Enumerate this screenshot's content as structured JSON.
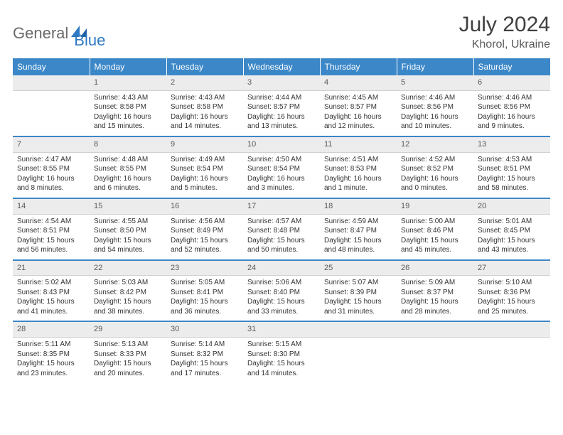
{
  "logo": {
    "part1": "General",
    "part2": "Blue"
  },
  "title": "July 2024",
  "location": "Khorol, Ukraine",
  "colors": {
    "header_bg": "#3b87c8",
    "header_text": "#ffffff",
    "daynum_bg": "#ececec",
    "row_divider": "#3b87c8",
    "body_bg": "#ffffff",
    "text": "#333333",
    "logo_gray": "#6a6a6a",
    "logo_blue": "#2f78c3"
  },
  "day_headers": [
    "Sunday",
    "Monday",
    "Tuesday",
    "Wednesday",
    "Thursday",
    "Friday",
    "Saturday"
  ],
  "weeks": [
    {
      "nums": [
        "",
        "1",
        "2",
        "3",
        "4",
        "5",
        "6"
      ],
      "cells": [
        null,
        {
          "sunrise": "Sunrise: 4:43 AM",
          "sunset": "Sunset: 8:58 PM",
          "daylight": "Daylight: 16 hours and 15 minutes."
        },
        {
          "sunrise": "Sunrise: 4:43 AM",
          "sunset": "Sunset: 8:58 PM",
          "daylight": "Daylight: 16 hours and 14 minutes."
        },
        {
          "sunrise": "Sunrise: 4:44 AM",
          "sunset": "Sunset: 8:57 PM",
          "daylight": "Daylight: 16 hours and 13 minutes."
        },
        {
          "sunrise": "Sunrise: 4:45 AM",
          "sunset": "Sunset: 8:57 PM",
          "daylight": "Daylight: 16 hours and 12 minutes."
        },
        {
          "sunrise": "Sunrise: 4:46 AM",
          "sunset": "Sunset: 8:56 PM",
          "daylight": "Daylight: 16 hours and 10 minutes."
        },
        {
          "sunrise": "Sunrise: 4:46 AM",
          "sunset": "Sunset: 8:56 PM",
          "daylight": "Daylight: 16 hours and 9 minutes."
        }
      ]
    },
    {
      "nums": [
        "7",
        "8",
        "9",
        "10",
        "11",
        "12",
        "13"
      ],
      "cells": [
        {
          "sunrise": "Sunrise: 4:47 AM",
          "sunset": "Sunset: 8:55 PM",
          "daylight": "Daylight: 16 hours and 8 minutes."
        },
        {
          "sunrise": "Sunrise: 4:48 AM",
          "sunset": "Sunset: 8:55 PM",
          "daylight": "Daylight: 16 hours and 6 minutes."
        },
        {
          "sunrise": "Sunrise: 4:49 AM",
          "sunset": "Sunset: 8:54 PM",
          "daylight": "Daylight: 16 hours and 5 minutes."
        },
        {
          "sunrise": "Sunrise: 4:50 AM",
          "sunset": "Sunset: 8:54 PM",
          "daylight": "Daylight: 16 hours and 3 minutes."
        },
        {
          "sunrise": "Sunrise: 4:51 AM",
          "sunset": "Sunset: 8:53 PM",
          "daylight": "Daylight: 16 hours and 1 minute."
        },
        {
          "sunrise": "Sunrise: 4:52 AM",
          "sunset": "Sunset: 8:52 PM",
          "daylight": "Daylight: 16 hours and 0 minutes."
        },
        {
          "sunrise": "Sunrise: 4:53 AM",
          "sunset": "Sunset: 8:51 PM",
          "daylight": "Daylight: 15 hours and 58 minutes."
        }
      ]
    },
    {
      "nums": [
        "14",
        "15",
        "16",
        "17",
        "18",
        "19",
        "20"
      ],
      "cells": [
        {
          "sunrise": "Sunrise: 4:54 AM",
          "sunset": "Sunset: 8:51 PM",
          "daylight": "Daylight: 15 hours and 56 minutes."
        },
        {
          "sunrise": "Sunrise: 4:55 AM",
          "sunset": "Sunset: 8:50 PM",
          "daylight": "Daylight: 15 hours and 54 minutes."
        },
        {
          "sunrise": "Sunrise: 4:56 AM",
          "sunset": "Sunset: 8:49 PM",
          "daylight": "Daylight: 15 hours and 52 minutes."
        },
        {
          "sunrise": "Sunrise: 4:57 AM",
          "sunset": "Sunset: 8:48 PM",
          "daylight": "Daylight: 15 hours and 50 minutes."
        },
        {
          "sunrise": "Sunrise: 4:59 AM",
          "sunset": "Sunset: 8:47 PM",
          "daylight": "Daylight: 15 hours and 48 minutes."
        },
        {
          "sunrise": "Sunrise: 5:00 AM",
          "sunset": "Sunset: 8:46 PM",
          "daylight": "Daylight: 15 hours and 45 minutes."
        },
        {
          "sunrise": "Sunrise: 5:01 AM",
          "sunset": "Sunset: 8:45 PM",
          "daylight": "Daylight: 15 hours and 43 minutes."
        }
      ]
    },
    {
      "nums": [
        "21",
        "22",
        "23",
        "24",
        "25",
        "26",
        "27"
      ],
      "cells": [
        {
          "sunrise": "Sunrise: 5:02 AM",
          "sunset": "Sunset: 8:43 PM",
          "daylight": "Daylight: 15 hours and 41 minutes."
        },
        {
          "sunrise": "Sunrise: 5:03 AM",
          "sunset": "Sunset: 8:42 PM",
          "daylight": "Daylight: 15 hours and 38 minutes."
        },
        {
          "sunrise": "Sunrise: 5:05 AM",
          "sunset": "Sunset: 8:41 PM",
          "daylight": "Daylight: 15 hours and 36 minutes."
        },
        {
          "sunrise": "Sunrise: 5:06 AM",
          "sunset": "Sunset: 8:40 PM",
          "daylight": "Daylight: 15 hours and 33 minutes."
        },
        {
          "sunrise": "Sunrise: 5:07 AM",
          "sunset": "Sunset: 8:39 PM",
          "daylight": "Daylight: 15 hours and 31 minutes."
        },
        {
          "sunrise": "Sunrise: 5:09 AM",
          "sunset": "Sunset: 8:37 PM",
          "daylight": "Daylight: 15 hours and 28 minutes."
        },
        {
          "sunrise": "Sunrise: 5:10 AM",
          "sunset": "Sunset: 8:36 PM",
          "daylight": "Daylight: 15 hours and 25 minutes."
        }
      ]
    },
    {
      "nums": [
        "28",
        "29",
        "30",
        "31",
        "",
        "",
        ""
      ],
      "cells": [
        {
          "sunrise": "Sunrise: 5:11 AM",
          "sunset": "Sunset: 8:35 PM",
          "daylight": "Daylight: 15 hours and 23 minutes."
        },
        {
          "sunrise": "Sunrise: 5:13 AM",
          "sunset": "Sunset: 8:33 PM",
          "daylight": "Daylight: 15 hours and 20 minutes."
        },
        {
          "sunrise": "Sunrise: 5:14 AM",
          "sunset": "Sunset: 8:32 PM",
          "daylight": "Daylight: 15 hours and 17 minutes."
        },
        {
          "sunrise": "Sunrise: 5:15 AM",
          "sunset": "Sunset: 8:30 PM",
          "daylight": "Daylight: 15 hours and 14 minutes."
        },
        null,
        null,
        null
      ]
    }
  ]
}
